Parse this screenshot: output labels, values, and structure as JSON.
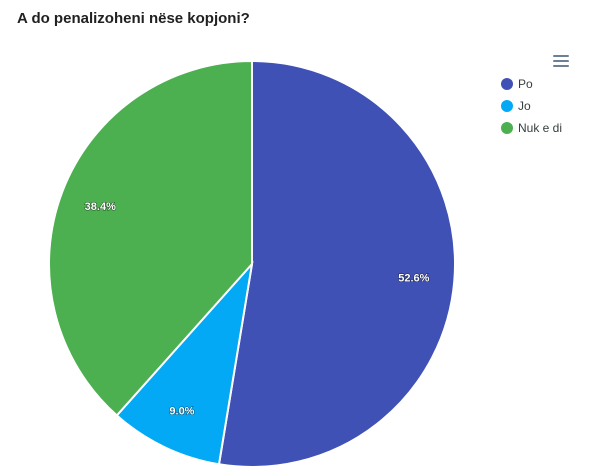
{
  "chart_data": {
    "type": "pie",
    "title": "A do penalizoheni nëse kopjoni?",
    "categories": [
      "Po",
      "Jo",
      "Nuk e di"
    ],
    "values": [
      52.6,
      9.0,
      38.4
    ],
    "data_labels": [
      "52.6%",
      "9.0%",
      "38.4%"
    ],
    "colors": [
      "#3f51b5",
      "#03a9f4",
      "#4caf50"
    ],
    "legend_position": "top-right"
  },
  "toolbar": {
    "menu_icon": "hamburger-menu-icon"
  }
}
